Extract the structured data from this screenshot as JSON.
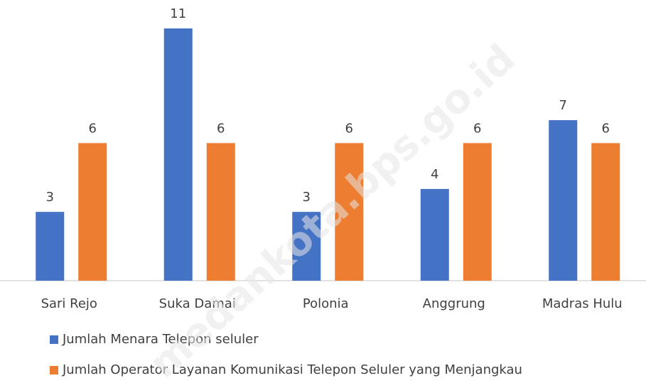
{
  "chart_data": {
    "type": "bar",
    "categories": [
      "Sari Rejo",
      "Suka Damai",
      "Polonia",
      "Anggrung",
      "Madras Hulu"
    ],
    "series": [
      {
        "name": "Jumlah Menara Telepon seluler",
        "color": "#4472c4",
        "values": [
          3,
          11,
          3,
          4,
          7
        ]
      },
      {
        "name": "Jumlah Operator Layanan Komunikasi Telepon Seluler yang Menjangkau",
        "color": "#ed7d31",
        "values": [
          6,
          6,
          6,
          6,
          6
        ]
      }
    ],
    "legend": "bottom",
    "watermark": "medankota.bps.go.id"
  }
}
